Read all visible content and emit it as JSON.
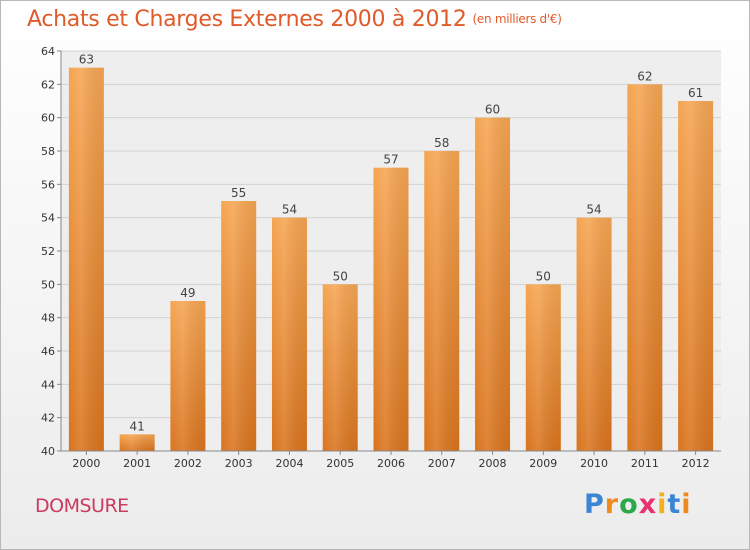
{
  "title": "Achats et Charges Externes 2000 à 2012",
  "subtitle": "(en milliers d'€)",
  "commune": "DOMSURE",
  "logo": [
    "P",
    "r",
    "o",
    "x",
    "i",
    "t",
    "i"
  ],
  "colors": {
    "bar_top": "#f5a552",
    "bar_bottom": "#d9741e",
    "title": "#e05a2a",
    "commune": "#cc3a5e"
  },
  "chart_data": {
    "type": "bar",
    "categories": [
      "2000",
      "2001",
      "2002",
      "2003",
      "2004",
      "2005",
      "2006",
      "2007",
      "2008",
      "2009",
      "2010",
      "2011",
      "2012"
    ],
    "values": [
      63,
      41,
      49,
      55,
      54,
      50,
      57,
      58,
      60,
      50,
      54,
      62,
      61
    ],
    "data_labels": [
      "63",
      "41",
      "49",
      "55",
      "54",
      "50",
      "57",
      "58",
      "60",
      "50",
      "54",
      "62",
      "61"
    ],
    "yticks": [
      "40",
      "42",
      "44",
      "46",
      "48",
      "50",
      "52",
      "54",
      "56",
      "58",
      "60",
      "62",
      "64"
    ],
    "ylim": [
      40,
      64
    ],
    "grid": true
  }
}
